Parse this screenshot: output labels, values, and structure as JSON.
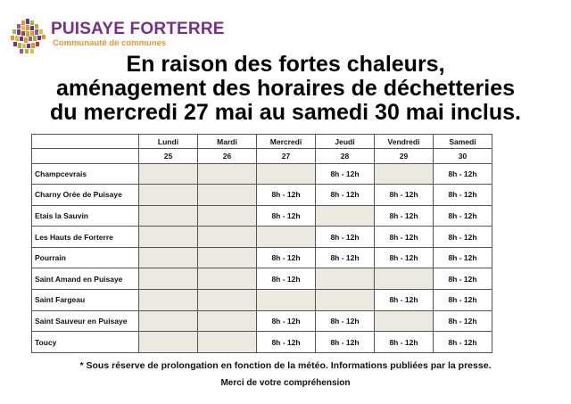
{
  "logo": {
    "name": "PUISAYE FORTERRE",
    "subtitle": "Communauté de communes"
  },
  "headline": [
    "En raison des fortes chaleurs,",
    "aménagement des horaires de déchetteries",
    "du mercredi 27 mai au samedi 30 mai inclus."
  ],
  "table": {
    "days": [
      {
        "name": "Lundi",
        "date": "25"
      },
      {
        "name": "Mardi",
        "date": "26"
      },
      {
        "name": "Mercredi",
        "date": "27"
      },
      {
        "name": "Jeudi",
        "date": "28"
      },
      {
        "name": "Vendredi",
        "date": "29"
      },
      {
        "name": "Samedi",
        "date": "30"
      }
    ],
    "rows": [
      {
        "site": "Champcevrais",
        "cells": [
          "",
          "",
          "",
          "8h - 12h",
          "",
          "8h - 12h"
        ]
      },
      {
        "site": "Charny Orée de Puisaye",
        "cells": [
          "",
          "",
          "8h - 12h",
          "8h - 12h",
          "8h - 12h",
          "8h - 12h"
        ]
      },
      {
        "site": "Etais la Sauvin",
        "cells": [
          "",
          "",
          "8h - 12h",
          "",
          "8h - 12h",
          "8h - 12h"
        ]
      },
      {
        "site": "Les Hauts de Forterre",
        "cells": [
          "",
          "",
          "",
          "8h - 12h",
          "8h - 12h",
          "8h - 12h"
        ]
      },
      {
        "site": "Pourrain",
        "cells": [
          "",
          "",
          "8h - 12h",
          "8h - 12h",
          "8h - 12h",
          "8h - 12h"
        ]
      },
      {
        "site": "Saint Amand en Puisaye",
        "cells": [
          "",
          "",
          "8h - 12h",
          "",
          "",
          "8h - 12h"
        ]
      },
      {
        "site": "Saint Fargeau",
        "cells": [
          "",
          "",
          "",
          "",
          "8h - 12h",
          "8h - 12h"
        ]
      },
      {
        "site": "Saint Sauveur en Puisaye",
        "cells": [
          "",
          "",
          "8h - 12h",
          "8h - 12h",
          "",
          "8h - 12h"
        ]
      },
      {
        "site": "Toucy",
        "cells": [
          "",
          "",
          "8h - 12h",
          "8h - 12h",
          "8h - 12h",
          "8h - 12h"
        ]
      }
    ]
  },
  "footnote": "* Sous réserve de prolongation en fonction de la météo. Informations publiées par la presse.",
  "thanks": "Merci de votre compréhension"
}
